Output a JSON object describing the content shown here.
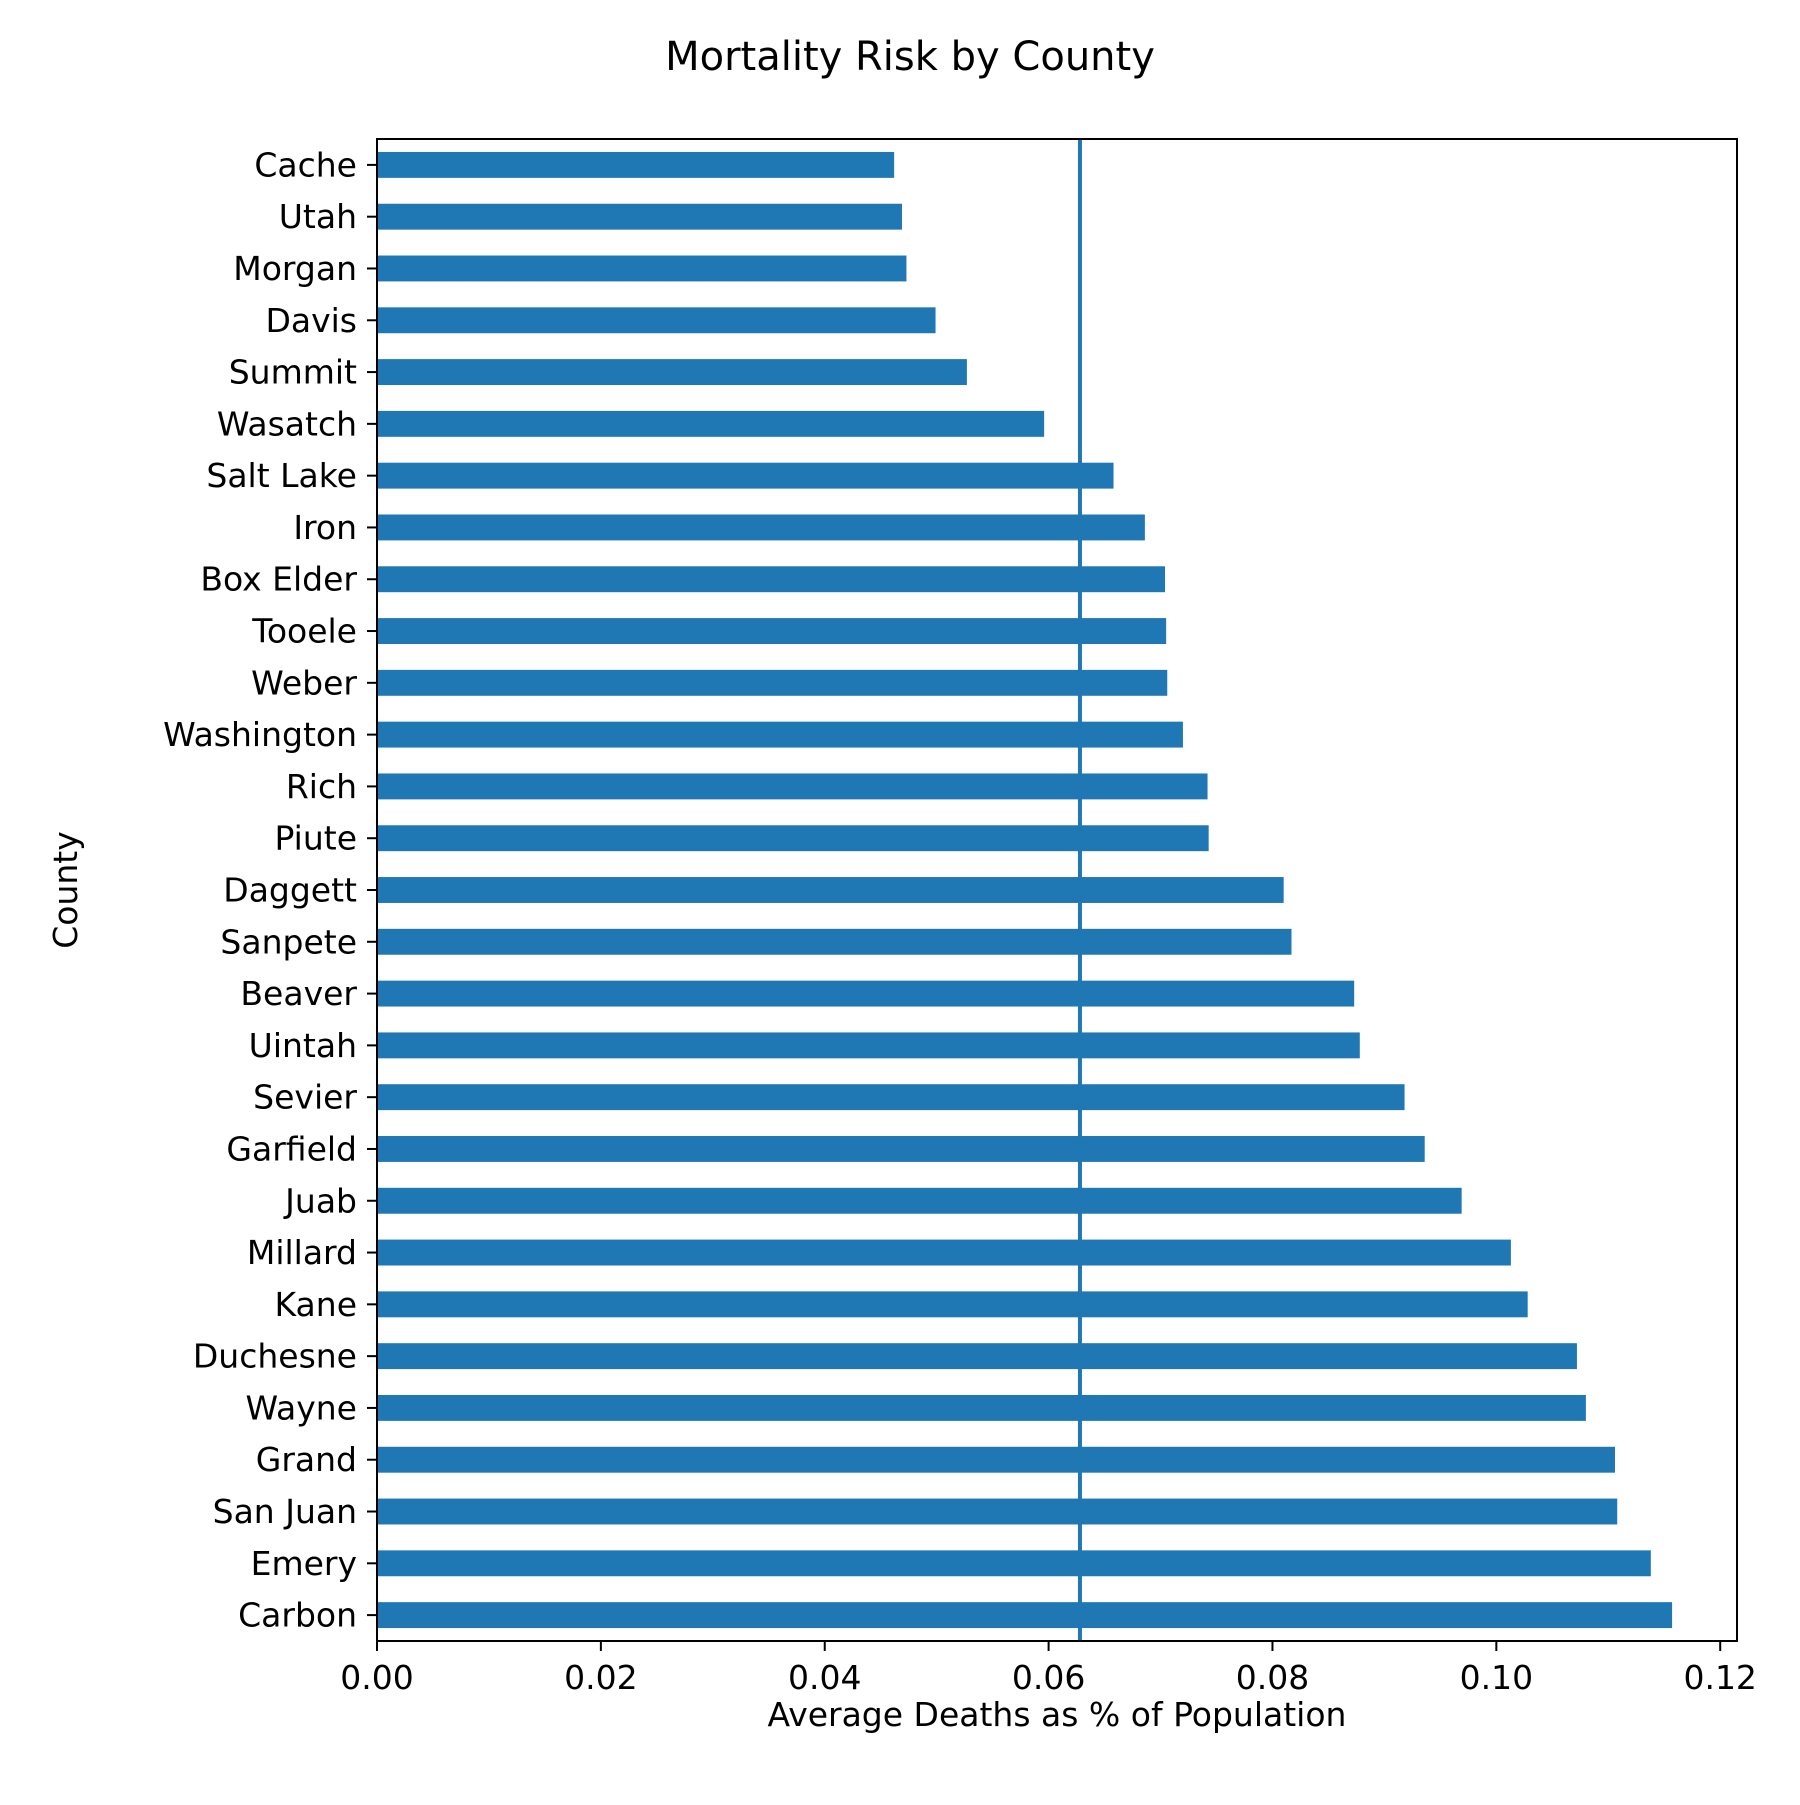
{
  "chart_data": {
    "type": "bar",
    "orientation": "horizontal",
    "title": "Mortality Risk by County",
    "xlabel": "Average Deaths as % of Population",
    "ylabel": "County",
    "xlim": [
      0,
      0.1215
    ],
    "xticks": [
      "0.00",
      "0.02",
      "0.04",
      "0.06",
      "0.08",
      "0.10",
      "0.12"
    ],
    "grid": false,
    "categories": [
      "Cache",
      "Utah",
      "Morgan",
      "Davis",
      "Summit",
      "Wasatch",
      "Salt Lake",
      "Iron",
      "Box Elder",
      "Tooele",
      "Weber",
      "Washington",
      "Rich",
      "Piute",
      "Daggett",
      "Sanpete",
      "Beaver",
      "Uintah",
      "Sevier",
      "Garfield",
      "Juab",
      "Millard",
      "Kane",
      "Duchesne",
      "Wayne",
      "Grand",
      "San Juan",
      "Emery",
      "Carbon"
    ],
    "values": [
      0.0462,
      0.0469,
      0.0473,
      0.0499,
      0.0527,
      0.0596,
      0.0658,
      0.0686,
      0.0704,
      0.0705,
      0.0706,
      0.072,
      0.0742,
      0.0743,
      0.081,
      0.0817,
      0.0873,
      0.0878,
      0.0918,
      0.0936,
      0.0969,
      0.1013,
      0.1028,
      0.1072,
      0.108,
      0.1106,
      0.1108,
      0.1138,
      0.1157
    ],
    "reference_line": {
      "value": 0.0628,
      "orientation": "vertical"
    },
    "colors": {
      "bar": "#1f77b4",
      "reference_line": "#1f77b4"
    }
  }
}
